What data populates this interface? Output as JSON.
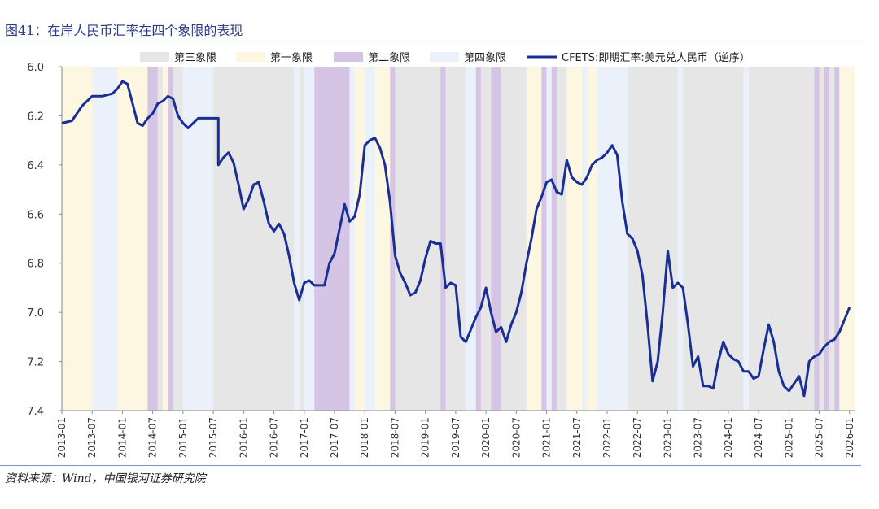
{
  "header": {
    "figure_title": "图41：在岸人民币汇率在四个象限的表现"
  },
  "footer": {
    "source_text": "资料来源：Wind，中国银河证券研究院"
  },
  "chart_data": {
    "type": "line",
    "ylim": [
      6.0,
      7.4
    ],
    "y_inverted": true,
    "y_ticks": [
      "6.0",
      "6.2",
      "6.4",
      "6.6",
      "6.8",
      "7.0",
      "7.2",
      "7.4"
    ],
    "x_start": "2013-01",
    "x_end": "2026-02",
    "x_ticks": [
      "2013-01",
      "2013-07",
      "2014-01",
      "2014-07",
      "2015-01",
      "2015-07",
      "2016-01",
      "2016-07",
      "2017-01",
      "2017-07",
      "2018-01",
      "2018-07",
      "2019-01",
      "2019-07",
      "2020-01",
      "2020-07",
      "2021-01",
      "2021-07",
      "2022-01",
      "2022-07",
      "2023-01",
      "2023-07",
      "2024-01",
      "2024-07",
      "2025-01",
      "2025-07",
      "2026-01"
    ],
    "legend": {
      "placement": "top",
      "entries": [
        {
          "key": "q3",
          "label": "第三象限",
          "color": "#e6e6e6"
        },
        {
          "key": "q1",
          "label": "第一象限",
          "color": "#fdf6e1"
        },
        {
          "key": "q2",
          "label": "第二象限",
          "color": "#d6c4e4"
        },
        {
          "key": "q4",
          "label": "第四象限",
          "color": "#eaf1fa"
        },
        {
          "key": "line",
          "label": "CFETS:即期汇率:美元兑人民币（逆序）",
          "color": "#1a2f96"
        }
      ]
    },
    "quadrant_colors": {
      "q1": "#fdf6e1",
      "q2": "#d6c4e4",
      "q3": "#e6e6e6",
      "q4": "#eaf1fa"
    },
    "quadrant_periods": [
      {
        "q": "q1",
        "start": "2013-01",
        "end": "2013-07"
      },
      {
        "q": "q4",
        "start": "2013-07",
        "end": "2013-12"
      },
      {
        "q": "q1",
        "start": "2013-12",
        "end": "2014-06"
      },
      {
        "q": "q2",
        "start": "2014-06",
        "end": "2014-08"
      },
      {
        "q": "q3",
        "start": "2014-08",
        "end": "2014-09"
      },
      {
        "q": "q1",
        "start": "2014-09",
        "end": "2014-10"
      },
      {
        "q": "q2",
        "start": "2014-10",
        "end": "2014-11"
      },
      {
        "q": "q3",
        "start": "2014-11",
        "end": "2015-01"
      },
      {
        "q": "q4",
        "start": "2015-01",
        "end": "2015-07"
      },
      {
        "q": "q3",
        "start": "2015-07",
        "end": "2016-11"
      },
      {
        "q": "q4",
        "start": "2016-11",
        "end": "2016-12"
      },
      {
        "q": "q3",
        "start": "2016-12",
        "end": "2017-01"
      },
      {
        "q": "q4",
        "start": "2017-01",
        "end": "2017-03"
      },
      {
        "q": "q2",
        "start": "2017-03",
        "end": "2017-10"
      },
      {
        "q": "q4",
        "start": "2017-10",
        "end": "2017-11"
      },
      {
        "q": "q1",
        "start": "2017-11",
        "end": "2018-01"
      },
      {
        "q": "q4",
        "start": "2018-01",
        "end": "2018-03"
      },
      {
        "q": "q1",
        "start": "2018-03",
        "end": "2018-06"
      },
      {
        "q": "q2",
        "start": "2018-06",
        "end": "2018-07"
      },
      {
        "q": "q3",
        "start": "2018-07",
        "end": "2019-04"
      },
      {
        "q": "q2",
        "start": "2019-04",
        "end": "2019-05"
      },
      {
        "q": "q3",
        "start": "2019-05",
        "end": "2019-09"
      },
      {
        "q": "q4",
        "start": "2019-09",
        "end": "2019-11"
      },
      {
        "q": "q2",
        "start": "2019-11",
        "end": "2019-12"
      },
      {
        "q": "q3",
        "start": "2019-12",
        "end": "2020-02"
      },
      {
        "q": "q2",
        "start": "2020-02",
        "end": "2020-04"
      },
      {
        "q": "q3",
        "start": "2020-04",
        "end": "2020-09"
      },
      {
        "q": "q1",
        "start": "2020-09",
        "end": "2020-12"
      },
      {
        "q": "q2",
        "start": "2020-12",
        "end": "2021-01"
      },
      {
        "q": "q4",
        "start": "2021-01",
        "end": "2021-02"
      },
      {
        "q": "q2",
        "start": "2021-02",
        "end": "2021-03"
      },
      {
        "q": "q3",
        "start": "2021-03",
        "end": "2021-05"
      },
      {
        "q": "q1",
        "start": "2021-05",
        "end": "2021-08"
      },
      {
        "q": "q4",
        "start": "2021-08",
        "end": "2021-09"
      },
      {
        "q": "q1",
        "start": "2021-09",
        "end": "2021-11"
      },
      {
        "q": "q4",
        "start": "2021-11",
        "end": "2022-05"
      },
      {
        "q": "q3",
        "start": "2022-05",
        "end": "2023-03"
      },
      {
        "q": "q4",
        "start": "2023-03",
        "end": "2023-04"
      },
      {
        "q": "q3",
        "start": "2023-04",
        "end": "2024-04"
      },
      {
        "q": "q4",
        "start": "2024-04",
        "end": "2024-05"
      },
      {
        "q": "q3",
        "start": "2024-05",
        "end": "2025-06"
      },
      {
        "q": "q2",
        "start": "2025-06",
        "end": "2025-07"
      },
      {
        "q": "q3",
        "start": "2025-07",
        "end": "2025-08"
      },
      {
        "q": "q2",
        "start": "2025-08",
        "end": "2025-09"
      },
      {
        "q": "q3",
        "start": "2025-09",
        "end": "2025-10"
      },
      {
        "q": "q2",
        "start": "2025-10",
        "end": "2025-11"
      },
      {
        "q": "q1",
        "start": "2025-11",
        "end": "2026-02"
      }
    ],
    "series": [
      {
        "name": "CFETS:即期汇率:美元兑人民币（逆序）",
        "color": "#1a2f96",
        "points": [
          [
            "2013-01",
            6.23
          ],
          [
            "2013-03",
            6.22
          ],
          [
            "2013-05",
            6.16
          ],
          [
            "2013-07",
            6.12
          ],
          [
            "2013-09",
            6.12
          ],
          [
            "2013-11",
            6.11
          ],
          [
            "2013-12",
            6.09
          ],
          [
            "2014-01",
            6.06
          ],
          [
            "2014-02",
            6.07
          ],
          [
            "2014-03",
            6.15
          ],
          [
            "2014-04",
            6.23
          ],
          [
            "2014-05",
            6.24
          ],
          [
            "2014-06",
            6.21
          ],
          [
            "2014-07",
            6.19
          ],
          [
            "2014-08",
            6.15
          ],
          [
            "2014-09",
            6.14
          ],
          [
            "2014-10",
            6.12
          ],
          [
            "2014-11",
            6.13
          ],
          [
            "2014-12",
            6.2
          ],
          [
            "2015-01",
            6.23
          ],
          [
            "2015-02",
            6.25
          ],
          [
            "2015-04",
            6.21
          ],
          [
            "2015-06",
            6.21
          ],
          [
            "2015-08",
            6.21
          ],
          [
            "2015-08",
            6.4
          ],
          [
            "2015-09",
            6.37
          ],
          [
            "2015-10",
            6.35
          ],
          [
            "2015-11",
            6.39
          ],
          [
            "2015-12",
            6.48
          ],
          [
            "2016-01",
            6.58
          ],
          [
            "2016-02",
            6.54
          ],
          [
            "2016-03",
            6.48
          ],
          [
            "2016-04",
            6.47
          ],
          [
            "2016-05",
            6.55
          ],
          [
            "2016-06",
            6.64
          ],
          [
            "2016-07",
            6.67
          ],
          [
            "2016-08",
            6.64
          ],
          [
            "2016-09",
            6.68
          ],
          [
            "2016-10",
            6.77
          ],
          [
            "2016-11",
            6.88
          ],
          [
            "2016-12",
            6.95
          ],
          [
            "2017-01",
            6.88
          ],
          [
            "2017-02",
            6.87
          ],
          [
            "2017-03",
            6.89
          ],
          [
            "2017-05",
            6.89
          ],
          [
            "2017-06",
            6.8
          ],
          [
            "2017-07",
            6.76
          ],
          [
            "2017-08",
            6.66
          ],
          [
            "2017-09",
            6.56
          ],
          [
            "2017-10",
            6.63
          ],
          [
            "2017-11",
            6.61
          ],
          [
            "2017-12",
            6.52
          ],
          [
            "2018-01",
            6.32
          ],
          [
            "2018-02",
            6.3
          ],
          [
            "2018-03",
            6.29
          ],
          [
            "2018-04",
            6.33
          ],
          [
            "2018-05",
            6.4
          ],
          [
            "2018-06",
            6.55
          ],
          [
            "2018-07",
            6.77
          ],
          [
            "2018-08",
            6.84
          ],
          [
            "2018-09",
            6.88
          ],
          [
            "2018-10",
            6.93
          ],
          [
            "2018-11",
            6.92
          ],
          [
            "2018-12",
            6.87
          ],
          [
            "2019-01",
            6.78
          ],
          [
            "2019-02",
            6.71
          ],
          [
            "2019-03",
            6.72
          ],
          [
            "2019-04",
            6.72
          ],
          [
            "2019-05",
            6.9
          ],
          [
            "2019-06",
            6.88
          ],
          [
            "2019-07",
            6.89
          ],
          [
            "2019-08",
            7.1
          ],
          [
            "2019-09",
            7.12
          ],
          [
            "2019-10",
            7.07
          ],
          [
            "2019-11",
            7.02
          ],
          [
            "2019-12",
            6.98
          ],
          [
            "2020-01",
            6.9
          ],
          [
            "2020-02",
            7.0
          ],
          [
            "2020-03",
            7.08
          ],
          [
            "2020-04",
            7.06
          ],
          [
            "2020-05",
            7.12
          ],
          [
            "2020-06",
            7.05
          ],
          [
            "2020-07",
            7.0
          ],
          [
            "2020-08",
            6.92
          ],
          [
            "2020-09",
            6.8
          ],
          [
            "2020-10",
            6.7
          ],
          [
            "2020-11",
            6.58
          ],
          [
            "2020-12",
            6.53
          ],
          [
            "2021-01",
            6.47
          ],
          [
            "2021-02",
            6.46
          ],
          [
            "2021-03",
            6.51
          ],
          [
            "2021-04",
            6.52
          ],
          [
            "2021-05",
            6.38
          ],
          [
            "2021-06",
            6.45
          ],
          [
            "2021-07",
            6.47
          ],
          [
            "2021-08",
            6.48
          ],
          [
            "2021-09",
            6.45
          ],
          [
            "2021-10",
            6.4
          ],
          [
            "2021-11",
            6.38
          ],
          [
            "2021-12",
            6.37
          ],
          [
            "2022-01",
            6.35
          ],
          [
            "2022-02",
            6.32
          ],
          [
            "2022-03",
            6.36
          ],
          [
            "2022-04",
            6.55
          ],
          [
            "2022-05",
            6.68
          ],
          [
            "2022-06",
            6.7
          ],
          [
            "2022-07",
            6.75
          ],
          [
            "2022-08",
            6.85
          ],
          [
            "2022-09",
            7.05
          ],
          [
            "2022-10",
            7.28
          ],
          [
            "2022-11",
            7.2
          ],
          [
            "2022-12",
            7.0
          ],
          [
            "2023-01",
            6.75
          ],
          [
            "2023-02",
            6.9
          ],
          [
            "2023-03",
            6.88
          ],
          [
            "2023-04",
            6.9
          ],
          [
            "2023-05",
            7.05
          ],
          [
            "2023-06",
            7.22
          ],
          [
            "2023-07",
            7.18
          ],
          [
            "2023-08",
            7.3
          ],
          [
            "2023-09",
            7.3
          ],
          [
            "2023-10",
            7.31
          ],
          [
            "2023-11",
            7.2
          ],
          [
            "2023-12",
            7.12
          ],
          [
            "2024-01",
            7.17
          ],
          [
            "2024-02",
            7.19
          ],
          [
            "2024-03",
            7.2
          ],
          [
            "2024-04",
            7.24
          ],
          [
            "2024-05",
            7.24
          ],
          [
            "2024-06",
            7.27
          ],
          [
            "2024-07",
            7.26
          ],
          [
            "2024-08",
            7.15
          ],
          [
            "2024-09",
            7.05
          ],
          [
            "2024-10",
            7.12
          ],
          [
            "2024-11",
            7.24
          ],
          [
            "2024-12",
            7.3
          ],
          [
            "2025-01",
            7.32
          ],
          [
            "2025-02",
            7.29
          ],
          [
            "2025-03",
            7.26
          ],
          [
            "2025-04",
            7.34
          ],
          [
            "2025-05",
            7.2
          ],
          [
            "2025-06",
            7.18
          ],
          [
            "2025-07",
            7.17
          ],
          [
            "2025-08",
            7.14
          ],
          [
            "2025-09",
            7.12
          ],
          [
            "2025-10",
            7.11
          ],
          [
            "2025-11",
            7.08
          ],
          [
            "2025-12",
            7.03
          ],
          [
            "2026-01",
            6.98
          ]
        ]
      }
    ]
  }
}
